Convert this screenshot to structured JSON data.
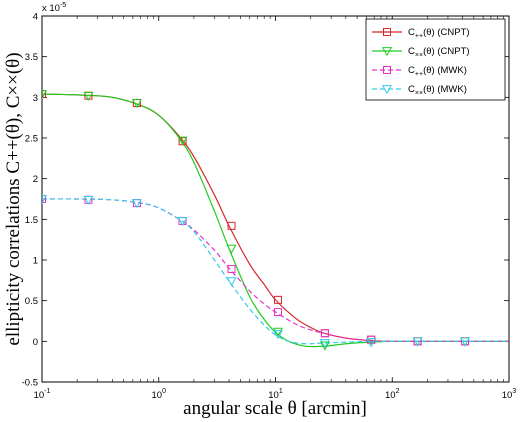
{
  "chart_data": {
    "type": "line",
    "xscale": "log",
    "xlim": [
      0.1,
      1000
    ],
    "ylim": [
      -5e-06,
      4e-05
    ],
    "x_ticks": [
      0.1,
      1,
      10,
      100,
      1000
    ],
    "x_tick_labels": [
      {
        "base": "10",
        "exp": "-1"
      },
      {
        "base": "10",
        "exp": "0"
      },
      {
        "base": "10",
        "exp": "1"
      },
      {
        "base": "10",
        "exp": "2"
      },
      {
        "base": "10",
        "exp": "3"
      }
    ],
    "y_ticks": [
      -0.5,
      0,
      0.5,
      1,
      1.5,
      2,
      2.5,
      3,
      3.5,
      4
    ],
    "y_tick_labels": [
      "-0.5",
      "0",
      "0.5",
      "1",
      "1.5",
      "2",
      "2.5",
      "3",
      "3.5",
      "4"
    ],
    "y_scale_factor": {
      "base": "x 10",
      "exp": "-5"
    },
    "xlabel": "angular scale θ [arcmin]",
    "ylabel": "ellipticity correlations C++(θ), C××(θ)",
    "grid": false,
    "legend_position": "top-right",
    "series": [
      {
        "label": {
          "pre": "C",
          "sub": "++",
          "post": "(θ) (CNPT)"
        },
        "color": "#d62728",
        "dash": "solid",
        "marker": "square",
        "curve_x": [
          0.1,
          0.2,
          0.4,
          0.7,
          1.0,
          1.5,
          2.0,
          3.0,
          4.0,
          6.0,
          8.0,
          10.0,
          15.0,
          20.0,
          26.0,
          40.0,
          65.0,
          100.0,
          165.0,
          420.0,
          1000.0
        ],
        "curve_y": [
          3.04,
          3.03,
          3.0,
          2.9,
          2.78,
          2.52,
          2.27,
          1.8,
          1.42,
          0.95,
          0.7,
          0.51,
          0.28,
          0.17,
          0.1,
          0.04,
          0.01,
          0.0,
          0.0,
          0.0,
          0.0
        ],
        "marker_x": [
          0.1,
          0.25,
          0.65,
          1.6,
          4.2,
          10.5,
          26.5,
          66.0,
          165.0,
          420.0
        ],
        "marker_y": [
          3.04,
          3.02,
          2.93,
          2.46,
          1.42,
          0.51,
          0.1,
          0.02,
          0.0,
          0.0
        ]
      },
      {
        "label": {
          "pre": "C",
          "sub": "××",
          "post": "(θ) (CNPT)"
        },
        "color": "#22cc22",
        "dash": "solid",
        "marker": "triangle-down",
        "curve_x": [
          0.1,
          0.2,
          0.4,
          0.7,
          1.0,
          1.5,
          2.0,
          3.0,
          4.0,
          6.0,
          8.0,
          10.0,
          13.0,
          18.0,
          26.0,
          40.0,
          65.0,
          100.0,
          165.0,
          420.0,
          1000.0
        ],
        "curve_y": [
          3.04,
          3.03,
          3.0,
          2.9,
          2.78,
          2.5,
          2.2,
          1.6,
          1.14,
          0.55,
          0.27,
          0.11,
          0.0,
          -0.06,
          -0.06,
          -0.03,
          -0.01,
          0.0,
          0.0,
          0.0,
          0.0
        ],
        "marker_x": [
          0.1,
          0.25,
          0.65,
          1.6,
          4.2,
          10.5,
          26.5,
          66.0,
          165.0,
          420.0
        ],
        "marker_y": [
          3.04,
          3.02,
          2.93,
          2.47,
          1.14,
          0.12,
          -0.05,
          -0.01,
          0.0,
          0.0
        ]
      },
      {
        "label": {
          "pre": "C",
          "sub": "++",
          "post": "(θ) (MWK)"
        },
        "color": "#e830c8",
        "dash": "dashed",
        "marker": "square",
        "curve_x": [
          0.1,
          0.2,
          0.4,
          0.7,
          1.0,
          1.5,
          2.0,
          3.0,
          4.0,
          6.0,
          8.0,
          10.0,
          15.0,
          20.0,
          26.0,
          40.0,
          65.0,
          100.0,
          165.0,
          420.0,
          1000.0
        ],
        "curve_y": [
          1.75,
          1.75,
          1.74,
          1.7,
          1.64,
          1.5,
          1.37,
          1.12,
          0.9,
          0.62,
          0.46,
          0.36,
          0.21,
          0.14,
          0.1,
          0.04,
          0.01,
          0.0,
          0.0,
          0.0,
          0.0
        ],
        "marker_x": [
          0.1,
          0.25,
          0.65,
          1.6,
          4.2,
          10.5,
          26.5,
          66.0,
          165.0,
          420.0
        ],
        "marker_y": [
          1.75,
          1.74,
          1.7,
          1.48,
          0.89,
          0.36,
          0.1,
          0.02,
          0.0,
          0.0
        ]
      },
      {
        "label": {
          "pre": "C",
          "sub": "××",
          "post": "(θ) (MWK)"
        },
        "color": "#33ccee",
        "dash": "dashed",
        "marker": "triangle-down",
        "curve_x": [
          0.1,
          0.2,
          0.4,
          0.7,
          1.0,
          1.5,
          2.0,
          3.0,
          4.0,
          6.0,
          8.0,
          10.0,
          13.0,
          18.0,
          26.0,
          40.0,
          65.0,
          100.0,
          165.0,
          420.0,
          1000.0
        ],
        "curve_y": [
          1.75,
          1.75,
          1.74,
          1.7,
          1.64,
          1.5,
          1.35,
          1.0,
          0.74,
          0.4,
          0.2,
          0.08,
          0.0,
          -0.03,
          -0.02,
          -0.01,
          0.0,
          0.0,
          0.0,
          0.0,
          0.0
        ],
        "marker_x": [
          0.1,
          0.25,
          0.65,
          1.6,
          4.2,
          10.5,
          26.5,
          66.0,
          165.0,
          420.0
        ],
        "marker_y": [
          1.75,
          1.74,
          1.7,
          1.48,
          0.74,
          0.09,
          -0.02,
          -0.01,
          0.0,
          0.0
        ]
      }
    ]
  }
}
